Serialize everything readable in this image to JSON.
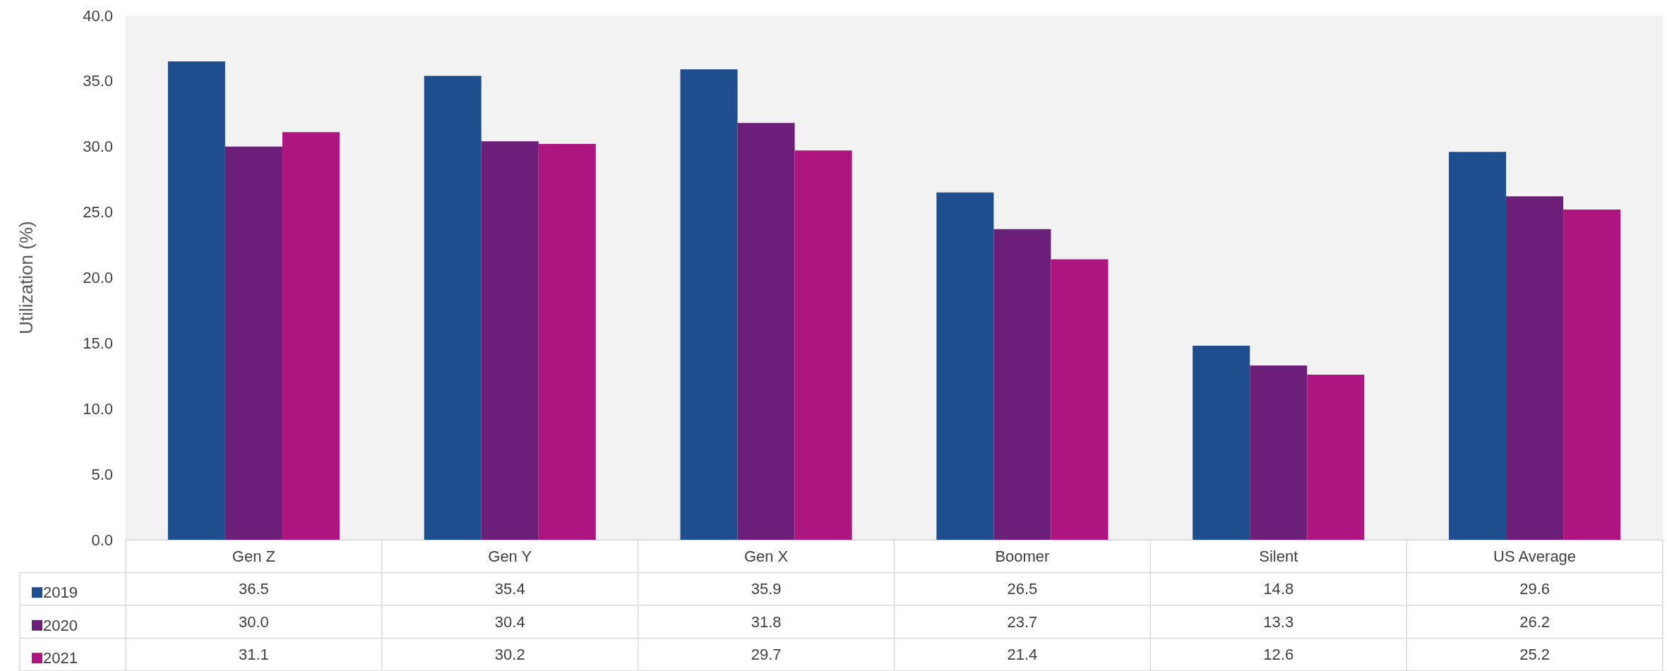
{
  "chart_data": {
    "type": "bar",
    "ylabel": "Utilization (%)",
    "categories": [
      "Gen Z",
      "Gen Y",
      "Gen X",
      "Boomer",
      "Silent",
      "US Average"
    ],
    "series": [
      {
        "name": "2019",
        "color": "#1f4e8f",
        "values": [
          36.5,
          35.4,
          35.9,
          26.5,
          14.8,
          29.6
        ],
        "value_labels": [
          "36.5",
          "35.4",
          "35.9",
          "26.5",
          "14.8",
          "29.6"
        ]
      },
      {
        "name": "2020",
        "color": "#6b1f78",
        "values": [
          30.0,
          30.4,
          31.8,
          23.7,
          13.3,
          26.2
        ],
        "value_labels": [
          "30.0",
          "30.4",
          "31.8",
          "23.7",
          "13.3",
          "26.2"
        ]
      },
      {
        "name": "2021",
        "color": "#ad1681",
        "values": [
          31.1,
          30.2,
          29.7,
          21.4,
          12.6,
          25.2
        ],
        "value_labels": [
          "31.1",
          "30.2",
          "29.7",
          "21.4",
          "12.6",
          "25.2"
        ]
      }
    ],
    "ylim": [
      0,
      40
    ],
    "yticks": [
      {
        "value": 0,
        "label": "0.0"
      },
      {
        "value": 5,
        "label": "5.0"
      },
      {
        "value": 10,
        "label": "10.0"
      },
      {
        "value": 15,
        "label": "15.0"
      },
      {
        "value": 20,
        "label": "20.0"
      },
      {
        "value": 25,
        "label": "25.0"
      },
      {
        "value": 30,
        "label": "30.0"
      },
      {
        "value": 35,
        "label": "35.0"
      },
      {
        "value": 40,
        "label": "40.0"
      }
    ],
    "grid": false,
    "legend": "bottom left"
  }
}
